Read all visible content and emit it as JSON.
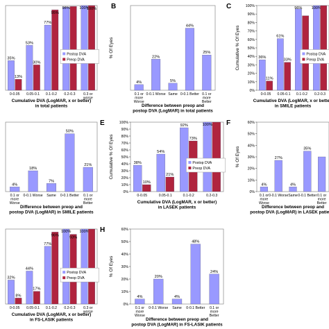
{
  "colors": {
    "postop": "#9999ff",
    "preop": "#b0243e",
    "frame": "#000000",
    "grid": "#c8c8c8",
    "text": "#000000"
  },
  "legend_labels": {
    "postop": "Postop DVA",
    "preop": "Preop DVA"
  },
  "ylabel_cumulative": "Cumulative % Of Eyes",
  "ylabel_eyes": "% Of Eyes",
  "chart_data": [
    {
      "id": "A",
      "panel_letter": "",
      "type": "bar",
      "title_lines": [
        "Cumulative DVA (LogMAR, x or better)",
        "in total patients"
      ],
      "categories": [
        "0-0.05",
        "0.05-0.1",
        "0.1-0.2",
        "0.2-0.3",
        "0.3 or worse"
      ],
      "series": [
        {
          "name": "Postop DVA",
          "values": [
            35,
            53,
            77,
            98,
            100
          ],
          "labels": [
            "35%",
            "53%",
            "77%",
            "98%",
            "100%"
          ]
        },
        {
          "name": "Preop DVA",
          "values": [
            13,
            30,
            95,
            99,
            100
          ],
          "labels": [
            "13%",
            "30%",
            "95%",
            "",
            "100%"
          ]
        }
      ],
      "ylim": [
        0,
        100
      ],
      "y_ticks": [],
      "ylabel": "",
      "legend": "right",
      "grid": false
    },
    {
      "id": "B",
      "panel_letter": "B",
      "type": "bar",
      "title_lines": [
        "Difference between preop and",
        "postop DVA (LogMAR) in total patients"
      ],
      "categories": [
        "0.1 or more Worse",
        "0-0.1 Worse",
        "Same",
        "0-0.1 Better",
        "0.1 or more Better"
      ],
      "series": [
        {
          "name": "",
          "values": [
            4,
            22,
            5,
            44,
            25
          ],
          "labels": [
            "4%",
            "22%",
            "5%",
            "44%",
            "25%"
          ]
        }
      ],
      "ylim": [
        0,
        60
      ],
      "y_ticks": [],
      "ylabel": "% Of Eyes",
      "legend": "none",
      "grid": false
    },
    {
      "id": "C",
      "panel_letter": "C",
      "type": "bar",
      "title_lines": [
        "Cumulative DVA (LogMAR, x or better)",
        "in SMILE patients"
      ],
      "categories": [
        "0-0.05",
        "0.05-0.1",
        "0.1-0.2",
        "0.2-0.3"
      ],
      "series": [
        {
          "name": "Postop DVA",
          "values": [
            36,
            61,
            96,
            100
          ],
          "labels": [
            "36%",
            "61%",
            "96%",
            "100%"
          ]
        },
        {
          "name": "Preop DVA",
          "values": [
            11,
            33,
            88,
            100
          ],
          "labels": [
            "11%",
            "33%",
            "",
            ""
          ]
        }
      ],
      "ylim": [
        0,
        100
      ],
      "y_ticks": [
        "0%",
        "10%",
        "20%",
        "30%",
        "40%",
        "50%",
        "60%",
        "70%",
        "80%",
        "90%",
        "100%"
      ],
      "ylabel": "Cumulative % Of Eyes",
      "legend": "right",
      "grid": false
    },
    {
      "id": "D",
      "panel_letter": "",
      "type": "bar",
      "title_lines": [
        "Difference between preop and",
        "postop DVA (LogMAR) in SMILE patients"
      ],
      "categories": [
        "0.1 or more Worse",
        "0-0.1 Worse",
        "Same",
        "0-0.1 Better",
        "0.1 or more Better"
      ],
      "series": [
        {
          "name": "",
          "values": [
            4,
            18,
            7,
            50,
            21
          ],
          "labels": [
            "4%",
            "18%",
            "7%",
            "50%",
            "21%"
          ]
        }
      ],
      "ylim": [
        0,
        60
      ],
      "y_ticks": [],
      "ylabel": "",
      "legend": "none",
      "grid": false
    },
    {
      "id": "E",
      "panel_letter": "E",
      "type": "bar",
      "title_lines": [
        "Cumulative DVA (LogMAR, x or better)",
        "in LASEK patients"
      ],
      "categories": [
        "0-0.05",
        "0.05-0.1",
        "0.1-0.2",
        "0.2-0.3"
      ],
      "series": [
        {
          "name": "Postop DVA",
          "values": [
            38,
            54,
            92,
            100
          ],
          "labels": [
            "38%",
            "54%",
            "92%",
            "100%"
          ]
        },
        {
          "name": "Preop DVA",
          "values": [
            10,
            21,
            73,
            100
          ],
          "labels": [
            "10%",
            "21%",
            "73%",
            ""
          ]
        }
      ],
      "ylim": [
        0,
        100
      ],
      "y_ticks": [
        "0%",
        "10%",
        "20%",
        "30%",
        "40%",
        "50%",
        "60%",
        "70%",
        "80%",
        "90%",
        "100%"
      ],
      "ylabel": "Cumulative % Of Eyes",
      "legend": "right",
      "grid": false
    },
    {
      "id": "F",
      "panel_letter": "F",
      "type": "bar",
      "title_lines": [
        "Difference between preop and",
        "postop DVA (LogMAR) in LASEK patients"
      ],
      "categories": [
        "0.1 or more Worse",
        "0-0.1 Worse",
        "Same",
        "0-0.1 Better",
        "0.1 or more Better"
      ],
      "series": [
        {
          "name": "",
          "values": [
            4,
            27,
            4,
            35,
            30
          ],
          "labels": [
            "4%",
            "27%",
            "4%",
            "35%",
            ""
          ]
        }
      ],
      "ylim": [
        0,
        60
      ],
      "y_ticks": [
        "0%",
        "10%",
        "20%",
        "30%",
        "40%",
        "50%",
        "60%"
      ],
      "ylabel": "% Of Eyes",
      "legend": "none",
      "grid": false
    },
    {
      "id": "G",
      "panel_letter": "",
      "type": "bar",
      "title_lines": [
        "Cumulative DVA (LogMAR, x or better)",
        "in FS-LASIK patients"
      ],
      "categories": [
        "0-0.05",
        "0.05-0.1",
        "0.1-0.2",
        "0.2-0.3",
        "0.3 or worse"
      ],
      "series": [
        {
          "name": "Postop DVA",
          "values": [
            32,
            44,
            77,
            100,
            100
          ],
          "labels": [
            "32%",
            "44%",
            "77%",
            "100%",
            "100%"
          ]
        },
        {
          "name": "Preop DVA",
          "values": [
            8,
            17,
            96,
            93,
            100
          ],
          "labels": [
            "8%",
            "17%",
            "96%",
            "93%",
            ""
          ]
        }
      ],
      "ylim": [
        0,
        100
      ],
      "y_ticks": [],
      "ylabel": "",
      "legend": "right",
      "grid": false
    },
    {
      "id": "H",
      "panel_letter": "H",
      "type": "bar",
      "title_lines": [
        "Difference between preop and",
        "postop DVA (LogMAR) in FS-LASIK patients"
      ],
      "categories": [
        "0.1 or more Worse",
        "0-0.1 Worse",
        "Same",
        "0-0.1 Better",
        "0.1 or more Better"
      ],
      "series": [
        {
          "name": "",
          "values": [
            4,
            20,
            4,
            48,
            24
          ],
          "labels": [
            "4%",
            "20%",
            "4%",
            "48%",
            "24%"
          ]
        }
      ],
      "ylim": [
        0,
        60
      ],
      "y_ticks": [
        "0%",
        "10%",
        "20%",
        "30%",
        "40%",
        "50%",
        "60%"
      ],
      "ylabel": "% Of Eyes",
      "legend": "none",
      "grid": false
    }
  ]
}
